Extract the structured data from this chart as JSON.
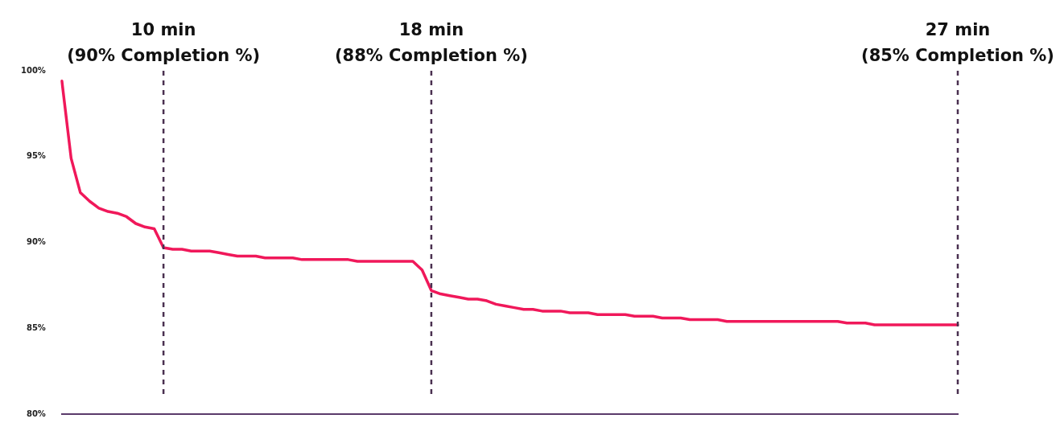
{
  "chart_data": {
    "type": "line",
    "categories": [
      null,
      null,
      null,
      null,
      null,
      null,
      null,
      null,
      null,
      null,
      null,
      null,
      null,
      null,
      null,
      null,
      null,
      null,
      null,
      null,
      null,
      null,
      null,
      null,
      null,
      null,
      null,
      null,
      null,
      null,
      null,
      null,
      null,
      null,
      null,
      null,
      null,
      null,
      null,
      null,
      null,
      null,
      null,
      null,
      null,
      null,
      null,
      null,
      null,
      null,
      null,
      null,
      null,
      null,
      null,
      null,
      null,
      null,
      null,
      null,
      null,
      null,
      null,
      null,
      null,
      null,
      null,
      null,
      null,
      null,
      null,
      null,
      null,
      null,
      null,
      null,
      null,
      null,
      null,
      null,
      null,
      null,
      null,
      null,
      null,
      null,
      null,
      null,
      null,
      null,
      null,
      null,
      null,
      null,
      null,
      null,
      null,
      null
    ],
    "series": [
      {
        "color": "#f0185a",
        "values": [
          99.4,
          94.9,
          92.9,
          92.4,
          92.0,
          91.8,
          91.7,
          91.5,
          91.1,
          90.9,
          90.8,
          89.7,
          89.6,
          89.6,
          89.5,
          89.5,
          89.5,
          89.4,
          89.3,
          89.2,
          89.2,
          89.2,
          89.1,
          89.1,
          89.1,
          89.1,
          89.0,
          89.0,
          89.0,
          89.0,
          89.0,
          89.0,
          88.9,
          88.9,
          88.9,
          88.9,
          88.9,
          88.9,
          88.9,
          88.4,
          87.2,
          87.0,
          86.9,
          86.8,
          86.7,
          86.7,
          86.6,
          86.4,
          86.3,
          86.2,
          86.1,
          86.1,
          86.0,
          86.0,
          86.0,
          85.9,
          85.9,
          85.9,
          85.8,
          85.8,
          85.8,
          85.8,
          85.7,
          85.7,
          85.7,
          85.6,
          85.6,
          85.6,
          85.5,
          85.5,
          85.5,
          85.5,
          85.4,
          85.4,
          85.4,
          85.4,
          85.4,
          85.4,
          85.4,
          85.4,
          85.4,
          85.4,
          85.4,
          85.4,
          85.4,
          85.3,
          85.3,
          85.3,
          85.2,
          85.2,
          85.2,
          85.2,
          85.2,
          85.2,
          85.2,
          85.2,
          85.2,
          85.2
        ]
      }
    ],
    "ylim": [
      80,
      100
    ],
    "yticks": [
      {
        "value": 80,
        "label": "80%"
      },
      {
        "value": 85,
        "label": "85%"
      },
      {
        "value": 90,
        "label": "90%"
      },
      {
        "value": 95,
        "label": "95%"
      },
      {
        "value": 100,
        "label": "100%"
      }
    ],
    "tick_labels": "y",
    "grid": false,
    "legend": false,
    "marker": "none",
    "line_style": "solid",
    "annotations": [
      "10 min\n(90% Completion %)",
      "18 min\n(88% Completion %)",
      "27 min\n(85% Completion %)"
    ]
  }
}
